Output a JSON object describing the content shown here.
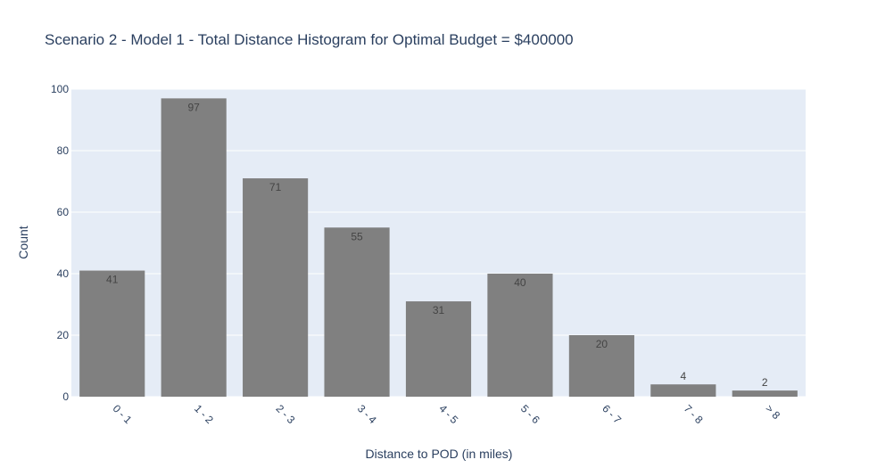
{
  "chart_data": {
    "type": "bar",
    "title": "Scenario 2 - Model 1 - Total Distance Histogram for Optimal Budget = $400000",
    "xlabel": "Distance to POD (in miles)",
    "ylabel": "Count",
    "categories": [
      "0 - 1",
      "1 - 2",
      "2 - 3",
      "3 - 4",
      "4 - 5",
      "5 - 6",
      "6 - 7",
      "7 - 8",
      "> 8"
    ],
    "values": [
      41,
      97,
      71,
      55,
      31,
      40,
      20,
      4,
      2
    ],
    "data_labels": [
      "41",
      "97",
      "71",
      "55",
      "31",
      "40",
      "20",
      "4",
      "2"
    ],
    "ylim": [
      0,
      100
    ],
    "yticks": [
      0,
      20,
      40,
      60,
      80,
      100
    ],
    "ytick_labels": [
      "0",
      "20",
      "40",
      "60",
      "80",
      "100"
    ],
    "grid": true,
    "colors": {
      "bar": "#808080",
      "plot_bg": "#e5ecf6",
      "grid": "#ffffff",
      "text": "#2a3f5f",
      "label": "#444444"
    }
  }
}
